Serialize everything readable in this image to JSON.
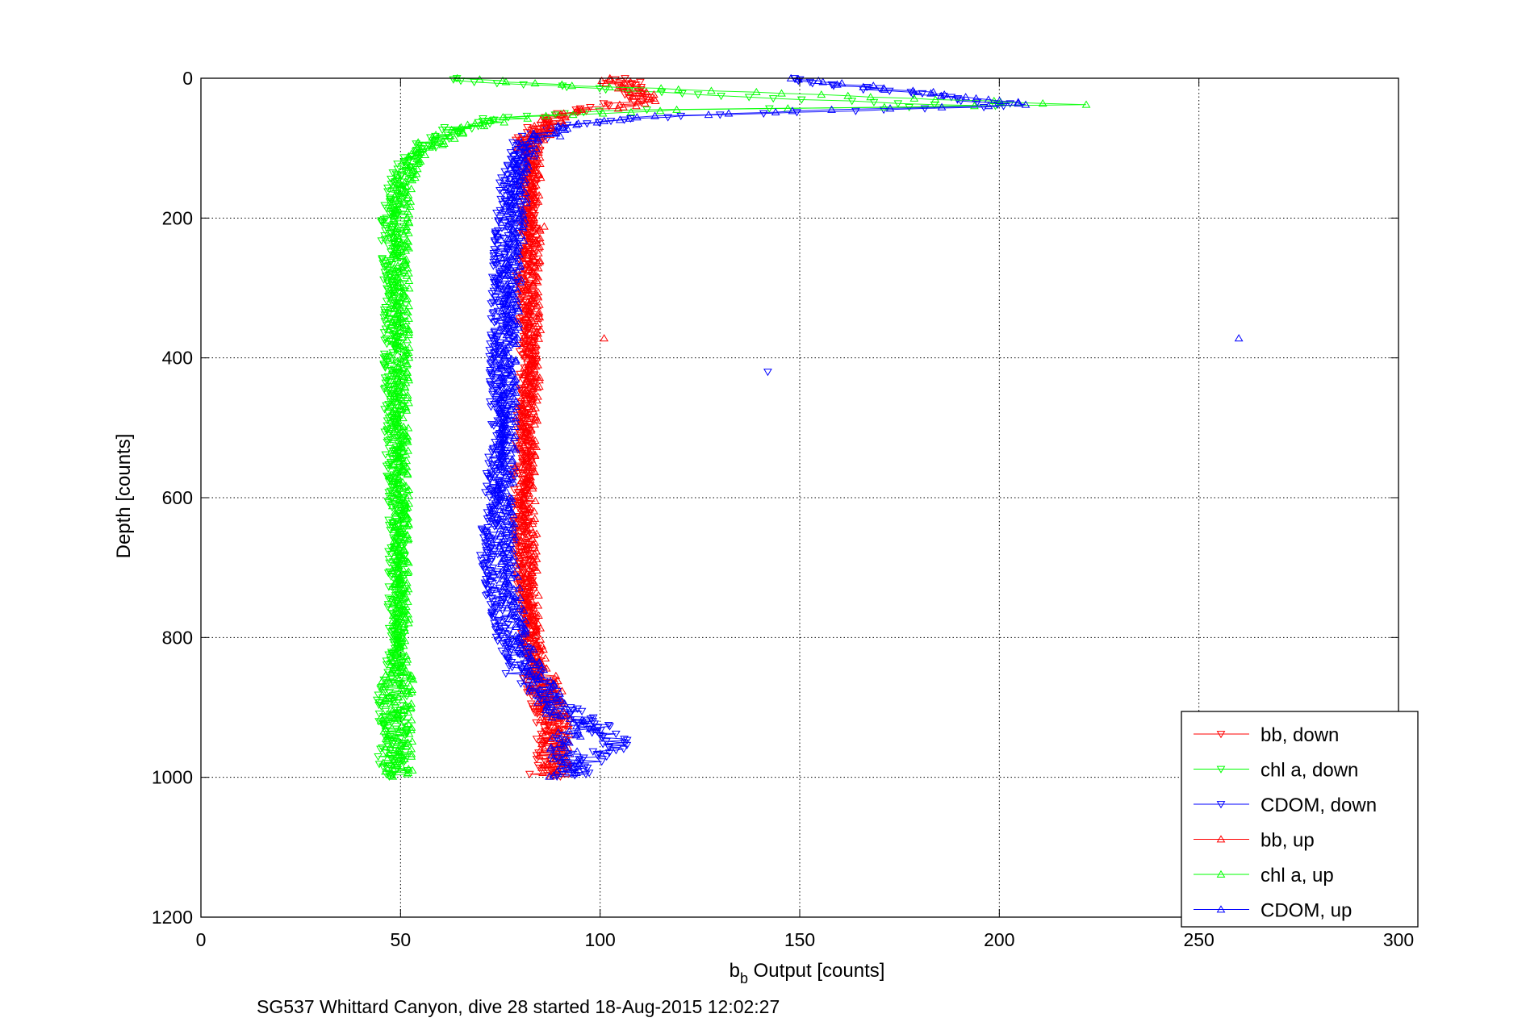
{
  "chart_data": {
    "type": "scatter",
    "xlabel_base": "b",
    "xlabel_sub": "b",
    "xlabel_rest": " Output [counts]",
    "ylabel": "Depth [counts]",
    "caption": "SG537 Whittard Canyon, dive 28 started 18-Aug-2015 12:02:27",
    "xlim": [
      0,
      300
    ],
    "ylim": [
      0,
      1200
    ],
    "y_reversed": true,
    "x_ticks": [
      "0",
      "50",
      "100",
      "150",
      "200",
      "250",
      "300"
    ],
    "y_ticks": [
      "0",
      "200",
      "400",
      "600",
      "800",
      "1000",
      "1200"
    ],
    "grid": true,
    "legend_position": "bottom-right",
    "series": [
      {
        "name": "bb, down",
        "color": "#ff0000",
        "marker": "triangle-down",
        "profile": [
          [
            0,
            105
          ],
          [
            10,
            107
          ],
          [
            20,
            108
          ],
          [
            30,
            110
          ],
          [
            40,
            100
          ],
          [
            50,
            90
          ],
          [
            60,
            88
          ],
          [
            70,
            84
          ],
          [
            80,
            83
          ],
          [
            90,
            82
          ],
          [
            100,
            83
          ],
          [
            120,
            83
          ],
          [
            150,
            82
          ],
          [
            200,
            82
          ],
          [
            300,
            81
          ],
          [
            400,
            82
          ],
          [
            500,
            81
          ],
          [
            600,
            80
          ],
          [
            700,
            81
          ],
          [
            800,
            82
          ],
          [
            850,
            84
          ],
          [
            900,
            87
          ],
          [
            950,
            88
          ],
          [
            1000,
            86
          ]
        ],
        "outliers": []
      },
      {
        "name": "chl a, down",
        "color": "#00ff00",
        "marker": "triangle-down",
        "profile": [
          [
            0,
            62
          ],
          [
            5,
            70
          ],
          [
            15,
            100
          ],
          [
            25,
            130
          ],
          [
            35,
            170
          ],
          [
            40,
            200
          ],
          [
            45,
            110
          ],
          [
            55,
            75
          ],
          [
            70,
            65
          ],
          [
            90,
            57
          ],
          [
            100,
            55
          ],
          [
            120,
            51
          ],
          [
            150,
            49
          ],
          [
            200,
            47
          ],
          [
            300,
            48
          ],
          [
            400,
            48
          ],
          [
            500,
            48
          ],
          [
            600,
            49
          ],
          [
            700,
            49
          ],
          [
            800,
            49
          ],
          [
            900,
            48
          ],
          [
            1000,
            48
          ]
        ],
        "outliers": []
      },
      {
        "name": "CDOM, down",
        "color": "#0000ff",
        "marker": "triangle-down",
        "profile": [
          [
            0,
            145
          ],
          [
            10,
            160
          ],
          [
            20,
            175
          ],
          [
            30,
            190
          ],
          [
            40,
            205
          ],
          [
            50,
            140
          ],
          [
            60,
            100
          ],
          [
            80,
            85
          ],
          [
            100,
            80
          ],
          [
            150,
            77
          ],
          [
            200,
            76
          ],
          [
            300,
            75
          ],
          [
            400,
            74
          ],
          [
            500,
            75
          ],
          [
            600,
            73
          ],
          [
            700,
            72
          ],
          [
            800,
            76
          ],
          [
            850,
            80
          ],
          [
            900,
            90
          ],
          [
            930,
            100
          ],
          [
            950,
            105
          ],
          [
            980,
            96
          ],
          [
            1000,
            93
          ]
        ],
        "outliers": [
          [
            420,
            142
          ]
        ]
      },
      {
        "name": "bb, up",
        "color": "#ff0000",
        "marker": "triangle-up",
        "profile": [
          [
            0,
            103
          ],
          [
            10,
            106
          ],
          [
            20,
            109
          ],
          [
            30,
            112
          ],
          [
            40,
            105
          ],
          [
            50,
            92
          ],
          [
            60,
            88
          ],
          [
            80,
            84
          ],
          [
            100,
            83
          ],
          [
            150,
            83
          ],
          [
            200,
            83
          ],
          [
            300,
            83
          ],
          [
            400,
            83
          ],
          [
            500,
            82
          ],
          [
            600,
            82
          ],
          [
            700,
            82
          ],
          [
            800,
            83
          ],
          [
            850,
            85
          ],
          [
            900,
            88
          ],
          [
            950,
            89
          ],
          [
            1000,
            88
          ]
        ],
        "outliers": [
          [
            372,
            101
          ],
          [
            212,
            86
          ]
        ]
      },
      {
        "name": "chl a, up",
        "color": "#00ff00",
        "marker": "triangle-up",
        "profile": [
          [
            0,
            64
          ],
          [
            10,
            90
          ],
          [
            20,
            140
          ],
          [
            30,
            185
          ],
          [
            38,
            220
          ],
          [
            45,
            120
          ],
          [
            55,
            80
          ],
          [
            70,
            68
          ],
          [
            90,
            58
          ],
          [
            110,
            54
          ],
          [
            150,
            51
          ],
          [
            200,
            50
          ],
          [
            300,
            50
          ],
          [
            400,
            50
          ],
          [
            500,
            50
          ],
          [
            600,
            50
          ],
          [
            700,
            50
          ],
          [
            800,
            50
          ],
          [
            900,
            49
          ],
          [
            1000,
            49
          ]
        ],
        "outliers": [
          [
            300,
            51
          ]
        ]
      },
      {
        "name": "CDOM, up",
        "color": "#0000ff",
        "marker": "triangle-up",
        "profile": [
          [
            0,
            145
          ],
          [
            10,
            165
          ],
          [
            20,
            180
          ],
          [
            30,
            195
          ],
          [
            38,
            207
          ],
          [
            45,
            160
          ],
          [
            55,
            110
          ],
          [
            70,
            90
          ],
          [
            90,
            84
          ],
          [
            100,
            82
          ],
          [
            150,
            80
          ],
          [
            200,
            79
          ],
          [
            300,
            78
          ],
          [
            400,
            77
          ],
          [
            500,
            77
          ],
          [
            600,
            76
          ],
          [
            700,
            77
          ],
          [
            800,
            80
          ],
          [
            850,
            84
          ],
          [
            900,
            88
          ],
          [
            930,
            95
          ],
          [
            950,
            90
          ],
          [
            980,
            92
          ],
          [
            1000,
            90
          ]
        ],
        "outliers": [
          [
            372,
            260
          ]
        ]
      }
    ]
  }
}
